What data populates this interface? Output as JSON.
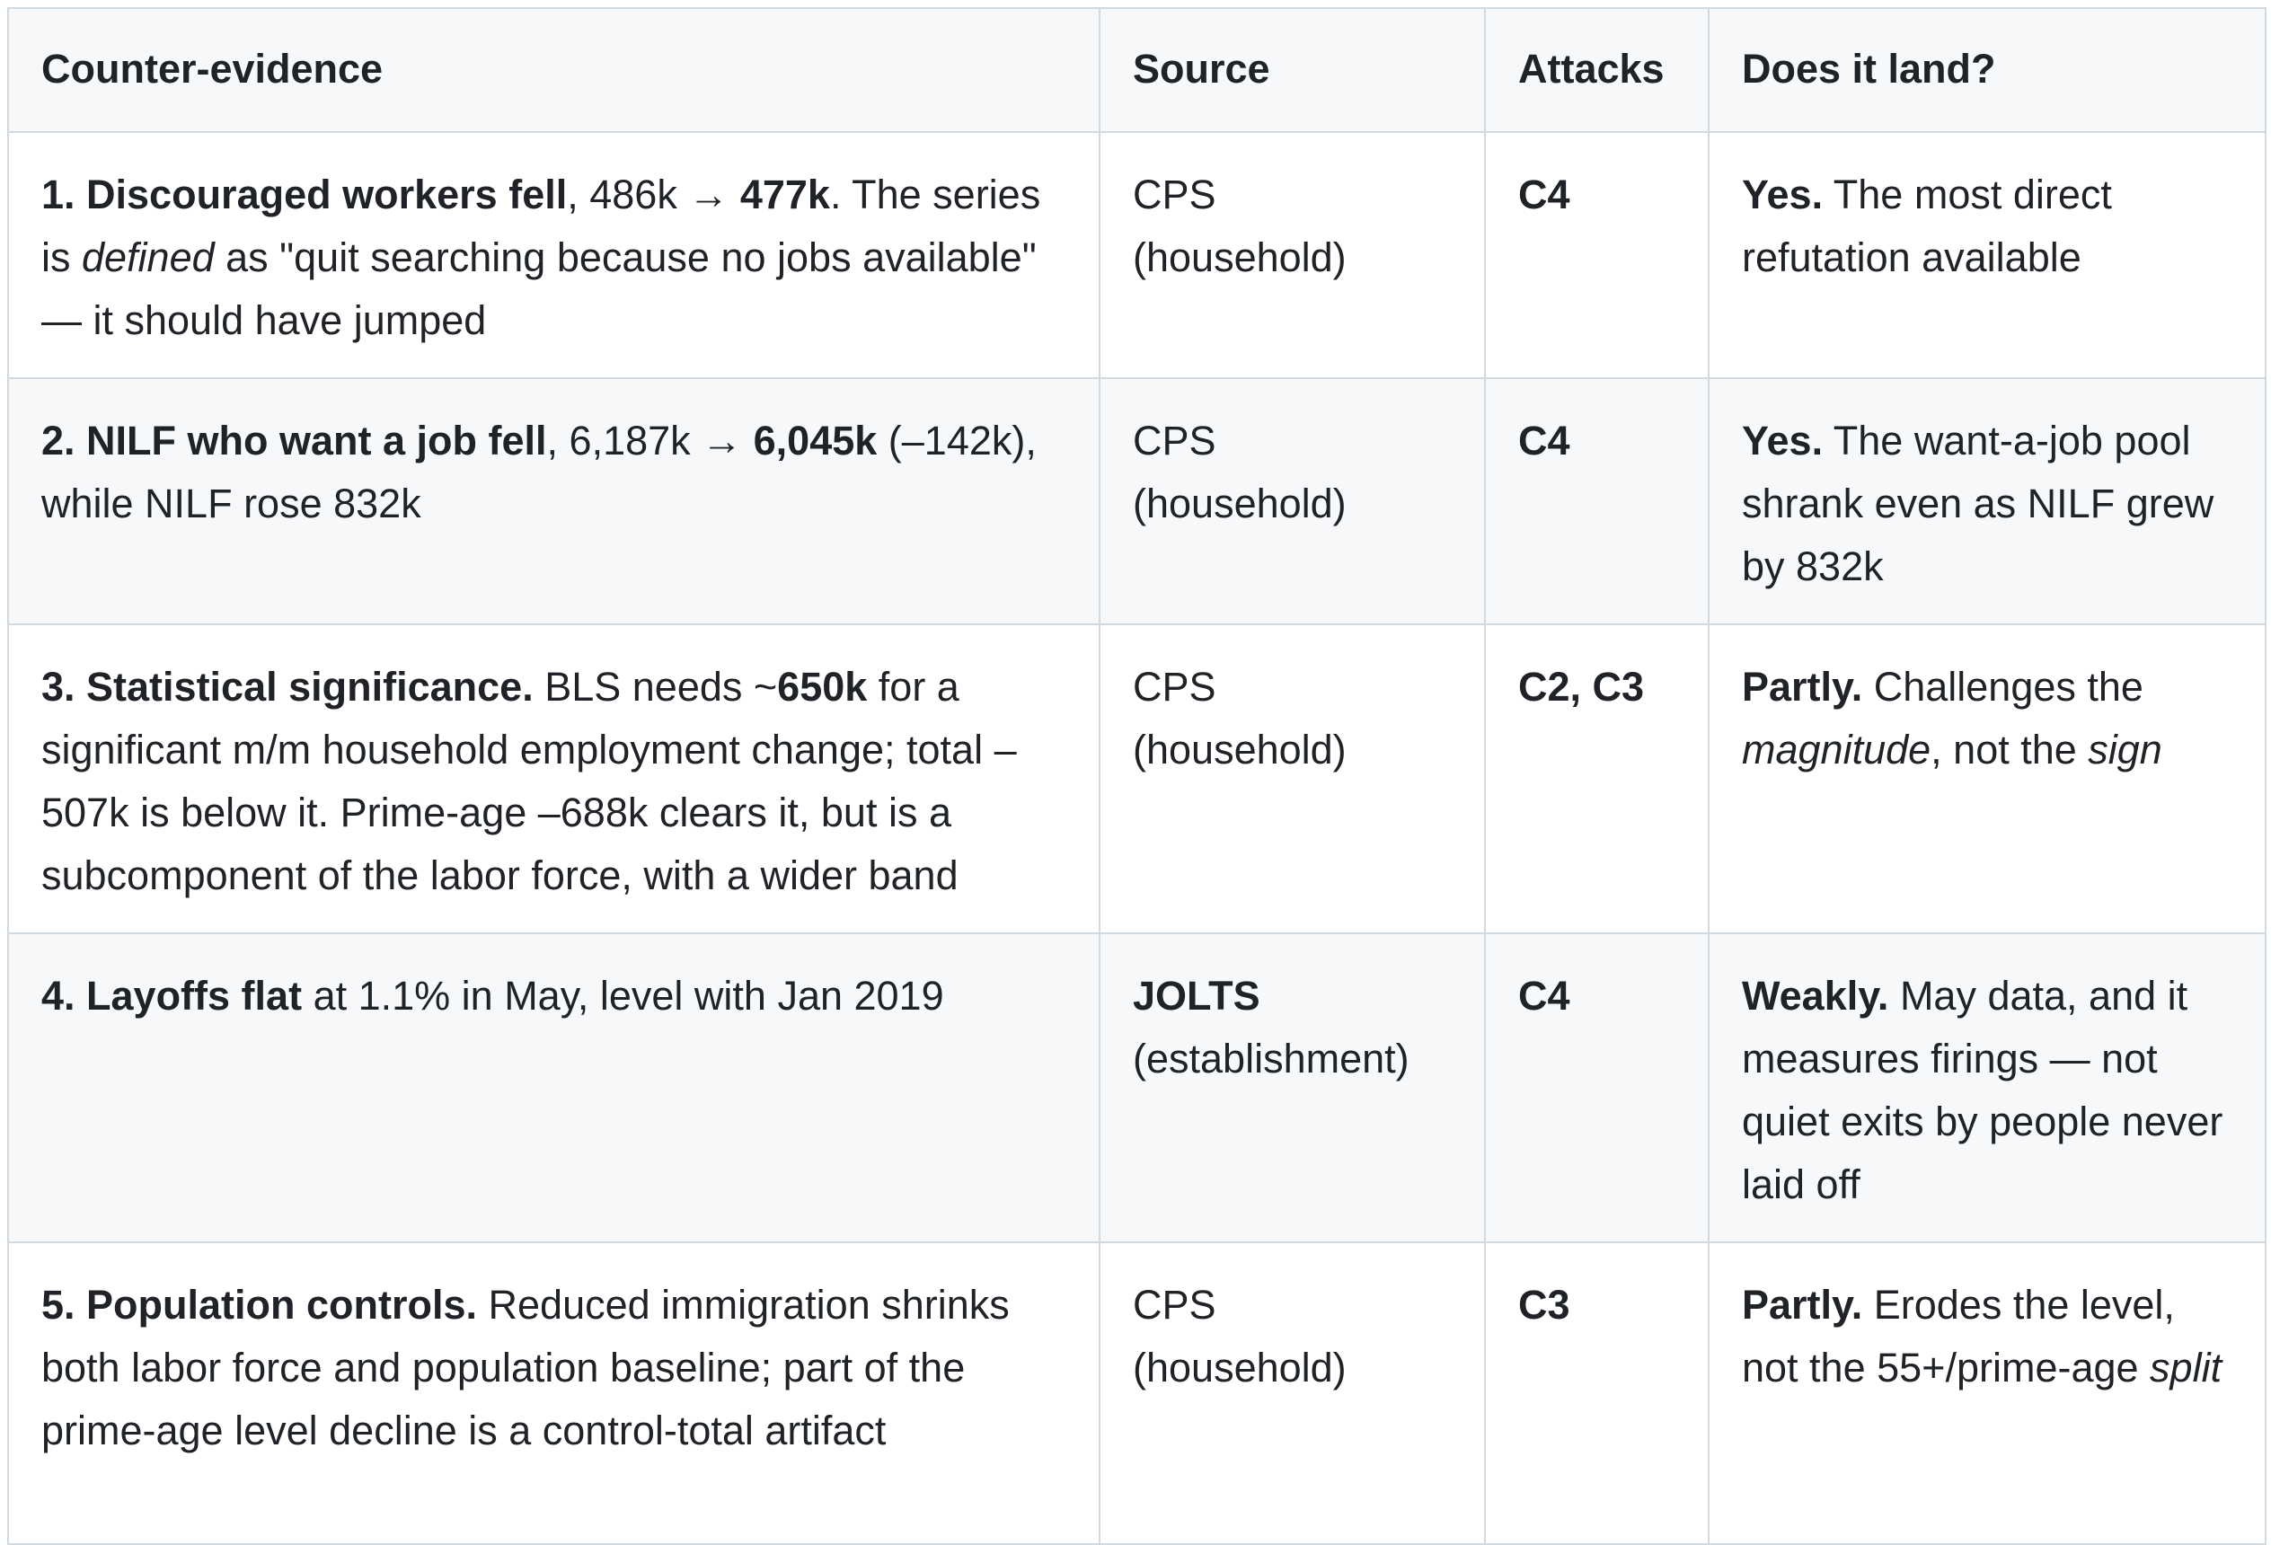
{
  "table": {
    "headers": [
      "Counter-evidence",
      "Source",
      "Attacks",
      "Does it land?"
    ],
    "rows": [
      {
        "evidence": {
          "lead": "1. Discouraged workers fell",
          "t1": ", 486k → ",
          "b1": "477k",
          "t2": ". The series is ",
          "i1": "defined",
          "t3": " as \"quit searching because no jobs available\" — it should have jumped"
        },
        "source": {
          "name": "CPS",
          "detail": "(household)"
        },
        "attacks": "C4",
        "verdict": {
          "label": "Yes.",
          "t1": " The most direct refutation available"
        }
      },
      {
        "evidence": {
          "lead": "2. NILF who want a job fell",
          "t1": ", 6,187k → ",
          "b1": "6,045k",
          "t2": " (–142k), while NILF rose 832k"
        },
        "source": {
          "name": "CPS",
          "detail": "(household)"
        },
        "attacks": "C4",
        "verdict": {
          "label": "Yes.",
          "t1": " The want-a-job pool shrank even as NILF grew by 832k"
        }
      },
      {
        "evidence": {
          "lead": "3. Statistical significance.",
          "t1": " BLS needs ~",
          "b1": "650k",
          "t2": " for a significant m/m household employment change; total –507k is below it. Prime-age –688k clears it, but is a subcomponent of the labor force, with a wider band"
        },
        "source": {
          "name": "CPS",
          "detail": "(household)"
        },
        "attacks": "C2, C3",
        "verdict": {
          "label": "Partly.",
          "t1": " Challenges the ",
          "i1": "magnitude",
          "t2": ", not the ",
          "i2": "sign"
        }
      },
      {
        "evidence": {
          "lead": "4. Layoffs flat",
          "t1": " at 1.1% in May, level with Jan 2019"
        },
        "source": {
          "name": "JOLTS",
          "detail": "(establishment)"
        },
        "attacks": "C4",
        "verdict": {
          "label": "Weakly.",
          "t1": " May data, and it measures firings — not quiet exits by people never laid off"
        }
      },
      {
        "evidence": {
          "lead": "5. Population controls.",
          "t1": " Reduced immigration shrinks both labor force and population baseline; part of the prime-age level decline is a control-total artifact"
        },
        "source": {
          "name": "CPS",
          "detail": "(household)"
        },
        "attacks": "C3",
        "verdict": {
          "label": "Partly.",
          "t1": " Erodes the level, not the 55+/prime-age ",
          "i1": "split"
        }
      }
    ]
  }
}
